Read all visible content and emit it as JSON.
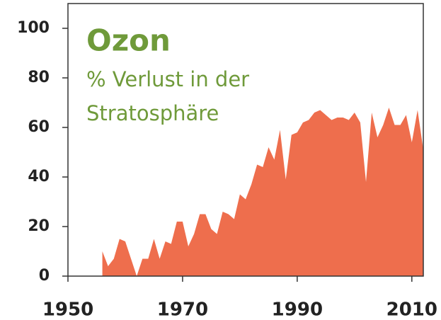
{
  "chart_data": {
    "type": "area",
    "title": "Ozon",
    "subtitle": "% Verlust in der Stratosphäre",
    "color": "#ee6e4d",
    "title_color": "#6f9a3a",
    "x": [
      1956,
      1957,
      1958,
      1959,
      1960,
      1961,
      1962,
      1963,
      1964,
      1965,
      1966,
      1967,
      1968,
      1969,
      1970,
      1971,
      1972,
      1973,
      1974,
      1975,
      1976,
      1977,
      1978,
      1979,
      1980,
      1981,
      1982,
      1983,
      1984,
      1985,
      1986,
      1987,
      1988,
      1989,
      1990,
      1991,
      1992,
      1993,
      1994,
      1995,
      1996,
      1997,
      1998,
      1999,
      2000,
      2001,
      2002,
      2003,
      2004,
      2005,
      2006,
      2007,
      2008,
      2009,
      2010,
      2011,
      2012
    ],
    "values": [
      10,
      4,
      7,
      15,
      14,
      7,
      0,
      7,
      7,
      15,
      7,
      14,
      13,
      22,
      22,
      12,
      17,
      25,
      25,
      19,
      17,
      26,
      25,
      23,
      33,
      31,
      37,
      45,
      44,
      52,
      47,
      59,
      39,
      57,
      58,
      62,
      63,
      66,
      67,
      65,
      63,
      64,
      64,
      63,
      66,
      62,
      38,
      66,
      56,
      61,
      68,
      61,
      61,
      65,
      54,
      67,
      51
    ],
    "xlim": [
      1950,
      2012
    ],
    "ylim": [
      0,
      110
    ],
    "xticks": [
      1950,
      1970,
      1990,
      2010
    ],
    "yticks": [
      0,
      20,
      40,
      60,
      80,
      100
    ]
  }
}
